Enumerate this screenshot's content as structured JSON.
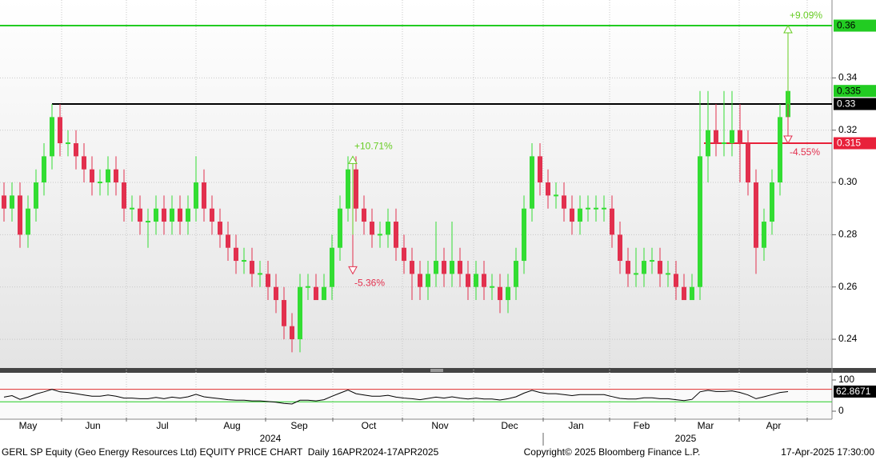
{
  "chart_data": {
    "type": "candlestick",
    "up_color": "#33dd33",
    "down_color": "#e2304e",
    "xlim": [
      -0.5,
      103.5
    ],
    "xticks": [
      {
        "value": 3,
        "label": "May"
      },
      {
        "value": 11.1,
        "label": "Jun"
      },
      {
        "value": 19.8,
        "label": "Jul"
      },
      {
        "value": 28.5,
        "label": "Aug"
      },
      {
        "value": 36.9,
        "label": "Sep"
      },
      {
        "value": 45.6,
        "label": "Oct"
      },
      {
        "value": 54.5,
        "label": "Nov"
      },
      {
        "value": 63.2,
        "label": "Dec"
      },
      {
        "value": 71.5,
        "label": "Jan"
      },
      {
        "value": 79.7,
        "label": "Feb"
      },
      {
        "value": 87.7,
        "label": "Mar"
      },
      {
        "value": 96.2,
        "label": "Apr"
      }
    ],
    "years": [
      {
        "value": 33.3,
        "label": "2024"
      },
      {
        "value": 85.2,
        "label": "2025"
      }
    ],
    "ylim": [
      0.229,
      0.3698
    ],
    "yticks": [
      0.24,
      0.26,
      0.28,
      {
        "value": 0.3,
        "label": "0.30"
      },
      0.32,
      0.34
    ],
    "open": [
      0.295,
      0.29,
      0.295,
      0.28,
      0.29,
      0.3,
      0.31,
      0.325,
      0.315,
      0.315,
      0.31,
      0.305,
      0.3,
      0.3,
      0.305,
      0.3,
      0.29,
      0.29,
      0.285,
      0.285,
      0.29,
      0.285,
      0.29,
      0.285,
      0.29,
      0.3,
      0.29,
      0.285,
      0.28,
      0.275,
      0.27,
      0.27,
      0.265,
      0.265,
      0.26,
      0.255,
      0.245,
      0.24,
      0.26,
      0.26,
      0.255,
      0.26,
      0.275,
      0.29,
      0.305,
      0.29,
      0.285,
      0.28,
      0.28,
      0.285,
      0.275,
      0.27,
      0.265,
      0.26,
      0.265,
      0.27,
      0.265,
      0.27,
      0.265,
      0.26,
      0.265,
      0.26,
      0.26,
      0.255,
      0.26,
      0.27,
      0.29,
      0.31,
      0.3,
      0.295,
      0.295,
      0.29,
      0.285,
      0.29,
      0.29,
      0.29,
      0.29,
      0.28,
      0.27,
      0.265,
      0.265,
      0.27,
      0.27,
      0.265,
      0.265,
      0.26,
      0.255,
      0.26,
      0.31,
      0.32,
      0.315,
      0.315,
      0.32,
      0.315,
      0.3,
      0.275,
      0.285,
      0.3,
      0.325
    ],
    "high": [
      0.3,
      0.3,
      0.3,
      0.295,
      0.305,
      0.315,
      0.33,
      0.33,
      0.32,
      0.32,
      0.315,
      0.31,
      0.305,
      0.31,
      0.31,
      0.305,
      0.295,
      0.295,
      0.29,
      0.295,
      0.295,
      0.295,
      0.295,
      0.295,
      0.31,
      0.305,
      0.295,
      0.29,
      0.285,
      0.28,
      0.275,
      0.275,
      0.27,
      0.27,
      0.265,
      0.26,
      0.25,
      0.265,
      0.265,
      0.265,
      0.265,
      0.28,
      0.295,
      0.31,
      0.31,
      0.295,
      0.29,
      0.285,
      0.29,
      0.29,
      0.28,
      0.275,
      0.27,
      0.27,
      0.285,
      0.275,
      0.285,
      0.275,
      0.27,
      0.27,
      0.27,
      0.265,
      0.265,
      0.265,
      0.275,
      0.295,
      0.315,
      0.315,
      0.305,
      0.3,
      0.3,
      0.295,
      0.295,
      0.295,
      0.295,
      0.295,
      0.295,
      0.285,
      0.275,
      0.275,
      0.275,
      0.275,
      0.275,
      0.27,
      0.27,
      0.265,
      0.265,
      0.335,
      0.335,
      0.33,
      0.335,
      0.335,
      0.33,
      0.32,
      0.305,
      0.29,
      0.305,
      0.33,
      0.34
    ],
    "low": [
      0.285,
      0.285,
      0.275,
      0.275,
      0.285,
      0.295,
      0.305,
      0.31,
      0.31,
      0.305,
      0.3,
      0.295,
      0.295,
      0.295,
      0.295,
      0.285,
      0.285,
      0.28,
      0.275,
      0.28,
      0.28,
      0.28,
      0.28,
      0.28,
      0.285,
      0.285,
      0.28,
      0.275,
      0.27,
      0.265,
      0.265,
      0.26,
      0.26,
      0.255,
      0.25,
      0.24,
      0.235,
      0.235,
      0.255,
      0.255,
      0.255,
      0.255,
      0.27,
      0.285,
      0.285,
      0.28,
      0.275,
      0.275,
      0.275,
      0.27,
      0.265,
      0.255,
      0.255,
      0.255,
      0.26,
      0.26,
      0.26,
      0.26,
      0.255,
      0.255,
      0.255,
      0.255,
      0.25,
      0.25,
      0.255,
      0.265,
      0.285,
      0.295,
      0.29,
      0.29,
      0.285,
      0.28,
      0.28,
      0.285,
      0.285,
      0.285,
      0.275,
      0.265,
      0.26,
      0.26,
      0.26,
      0.265,
      0.26,
      0.26,
      0.255,
      0.255,
      0.255,
      0.255,
      0.3,
      0.31,
      0.31,
      0.31,
      0.3,
      0.295,
      0.265,
      0.27,
      0.28,
      0.295,
      0.32
    ],
    "close": [
      0.29,
      0.295,
      0.28,
      0.29,
      0.3,
      0.31,
      0.325,
      0.315,
      0.315,
      0.31,
      0.305,
      0.3,
      0.3,
      0.305,
      0.3,
      0.29,
      0.29,
      0.285,
      0.285,
      0.29,
      0.285,
      0.29,
      0.285,
      0.29,
      0.3,
      0.29,
      0.285,
      0.28,
      0.275,
      0.27,
      0.27,
      0.265,
      0.265,
      0.26,
      0.255,
      0.245,
      0.24,
      0.26,
      0.26,
      0.255,
      0.26,
      0.275,
      0.29,
      0.305,
      0.29,
      0.285,
      0.28,
      0.28,
      0.285,
      0.275,
      0.27,
      0.265,
      0.26,
      0.265,
      0.27,
      0.265,
      0.27,
      0.265,
      0.26,
      0.265,
      0.26,
      0.26,
      0.255,
      0.26,
      0.27,
      0.29,
      0.31,
      0.3,
      0.295,
      0.295,
      0.29,
      0.285,
      0.29,
      0.29,
      0.29,
      0.29,
      0.28,
      0.27,
      0.265,
      0.265,
      0.27,
      0.27,
      0.265,
      0.265,
      0.26,
      0.255,
      0.26,
      0.31,
      0.32,
      0.315,
      0.315,
      0.32,
      0.315,
      0.3,
      0.275,
      0.285,
      0.3,
      0.325,
      0.335
    ],
    "levels": [
      {
        "value": 0.36,
        "from": -0.5,
        "color": "#22cc22",
        "text_color": "#000000"
      },
      {
        "value": 0.33,
        "from": 6,
        "color": "#000000",
        "text_color": "#ffffff"
      },
      {
        "value": 0.315,
        "from": 87.5,
        "color": "#e8213a",
        "text_color": "#ffffff"
      }
    ],
    "last_price": {
      "value": 0.335,
      "color": "#22cc22"
    },
    "annotations": [
      {
        "text": "+10.71%",
        "x": 43.6,
        "from": 0.28,
        "to": 0.31,
        "color": "#66cc22"
      },
      {
        "text": "-5.36%",
        "x": 43.6,
        "from": 0.28,
        "to": 0.265,
        "color": "#e2304e"
      },
      {
        "text": "+9.09%",
        "x": 98,
        "from": 0.33,
        "to": 0.36,
        "color": "#66cc22"
      },
      {
        "text": "-4.55%",
        "x": 98,
        "from": 0.33,
        "to": 0.315,
        "color": "#e2304e"
      }
    ],
    "rsi": {
      "color": "#000000",
      "ylim": [
        -20.5,
        123
      ],
      "yticks": [
        0,
        100
      ],
      "upper": {
        "value": 70,
        "color": "#e03030"
      },
      "lower": {
        "value": 30,
        "color": "#22cc22"
      },
      "values": [
        45,
        50,
        38,
        45,
        55,
        62,
        70,
        62,
        60,
        56,
        52,
        48,
        48,
        52,
        48,
        42,
        42,
        40,
        40,
        44,
        40,
        45,
        42,
        46,
        54,
        46,
        43,
        40,
        37,
        35,
        35,
        33,
        33,
        31,
        29,
        25,
        23,
        35,
        35,
        33,
        37,
        48,
        58,
        68,
        56,
        52,
        48,
        48,
        51,
        45,
        42,
        40,
        37,
        41,
        45,
        42,
        46,
        42,
        39,
        42,
        39,
        39,
        36,
        40,
        46,
        58,
        67,
        60,
        56,
        56,
        53,
        50,
        53,
        53,
        53,
        53,
        47,
        41,
        39,
        39,
        43,
        43,
        40,
        40,
        37,
        34,
        38,
        62,
        67,
        63,
        63,
        65,
        60,
        52,
        40,
        46,
        53,
        60,
        62.8671
      ]
    },
    "footer": {
      "left": "GERL SP Equity (Geo Energy Resources Ltd) EQUITY PRICE CHART  Daily 16APR2024-17APR2025",
      "center": "Copyright© 2025 Bloomberg Finance L.P.",
      "right": "17-Apr-2025 17:30:00"
    }
  }
}
